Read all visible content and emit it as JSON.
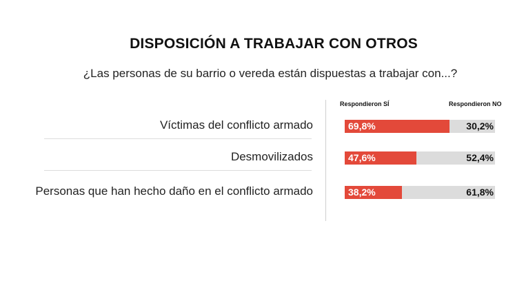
{
  "title": "DISPOSICIÓN A TRABAJAR CON OTROS",
  "subtitle": "¿Las personas de su barrio o vereda están dispuestas a trabajar con...?",
  "colors": {
    "yes": "#e3493a",
    "no": "#dcdcdc"
  },
  "chart_data": {
    "type": "bar",
    "stacked": true,
    "orientation": "horizontal",
    "categories": [
      "Víctimas del conflicto armado",
      "Desmovilizados",
      "Personas que han hecho daño en el conflicto armado"
    ],
    "series": [
      {
        "name": "Respondieron SÍ",
        "values": [
          69.8,
          47.6,
          38.2
        ],
        "labels": [
          "69,8%",
          "47,6%",
          "38,2%"
        ]
      },
      {
        "name": "Respondieron NO",
        "values": [
          30.2,
          52.4,
          61.8
        ],
        "labels": [
          "30,2%",
          "52,4%",
          "61,8%"
        ]
      }
    ],
    "xlim": [
      0,
      100
    ]
  }
}
